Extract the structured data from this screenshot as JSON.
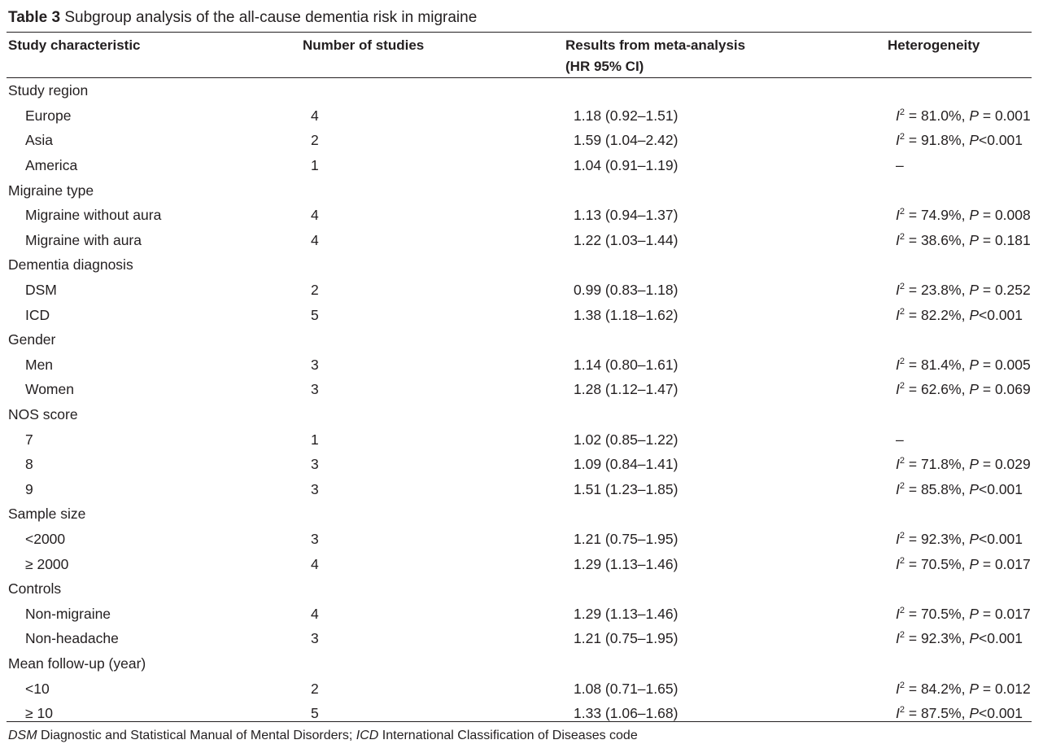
{
  "table": {
    "label": "Table 3",
    "caption": "Subgroup analysis of the all-cause dementia risk in migraine",
    "columns": [
      "Study characteristic",
      "Number of studies",
      "Results from meta-analysis",
      "(HR 95% CI)",
      "Heterogeneity"
    ],
    "groups": [
      {
        "name": "Study region",
        "rows": [
          {
            "label": "Europe",
            "n": "4",
            "hr": "1.18 (0.92–1.51)",
            "i2": "81.0%",
            "p_op": "=",
            "p": "0.001"
          },
          {
            "label": "Asia",
            "n": "2",
            "hr": "1.59 (1.04–2.42)",
            "i2": "91.8%",
            "p_op": "<",
            "p": "0.001"
          },
          {
            "label": "America",
            "n": "1",
            "hr": "1.04 (0.91–1.19)",
            "i2": "",
            "p_op": "",
            "p": "",
            "dash": "–"
          }
        ]
      },
      {
        "name": "Migraine type",
        "rows": [
          {
            "label": "Migraine without aura",
            "n": "4",
            "hr": "1.13 (0.94–1.37)",
            "i2": "74.9%",
            "p_op": "=",
            "p": "0.008"
          },
          {
            "label": "Migraine with aura",
            "n": "4",
            "hr": "1.22 (1.03–1.44)",
            "i2": "38.6%",
            "p_op": "=",
            "p": "0.181"
          }
        ]
      },
      {
        "name": "Dementia diagnosis",
        "rows": [
          {
            "label": "DSM",
            "n": "2",
            "hr": "0.99 (0.83–1.18)",
            "i2": "23.8%",
            "p_op": "=",
            "p": "0.252"
          },
          {
            "label": "ICD",
            "n": "5",
            "hr": "1.38 (1.18–1.62)",
            "i2": "82.2%",
            "p_op": "<",
            "p": "0.001"
          }
        ]
      },
      {
        "name": "Gender",
        "rows": [
          {
            "label": "Men",
            "n": "3",
            "hr": "1.14 (0.80–1.61)",
            "i2": "81.4%",
            "p_op": "=",
            "p": "0.005"
          },
          {
            "label": "Women",
            "n": "3",
            "hr": "1.28 (1.12–1.47)",
            "i2": "62.6%",
            "p_op": "=",
            "p": "0.069"
          }
        ]
      },
      {
        "name": "NOS score",
        "rows": [
          {
            "label": "7",
            "n": "1",
            "hr": "1.02 (0.85–1.22)",
            "i2": "",
            "p_op": "",
            "p": "",
            "dash": "–"
          },
          {
            "label": "8",
            "n": "3",
            "hr": "1.09 (0.84–1.41)",
            "i2": "71.8%",
            "p_op": "=",
            "p": "0.029"
          },
          {
            "label": "9",
            "n": "3",
            "hr": "1.51 (1.23–1.85)",
            "i2": "85.8%",
            "p_op": "<",
            "p": "0.001"
          }
        ]
      },
      {
        "name": "Sample size",
        "rows": [
          {
            "label": "<2000",
            "n": "3",
            "hr": "1.21 (0.75–1.95)",
            "i2": "92.3%",
            "p_op": "<",
            "p": "0.001"
          },
          {
            "label": "≥ 2000",
            "n": "4",
            "hr": "1.29 (1.13–1.46)",
            "i2": "70.5%",
            "p_op": "=",
            "p": "0.017"
          }
        ]
      },
      {
        "name": "Controls",
        "rows": [
          {
            "label": "Non-migraine",
            "n": "4",
            "hr": "1.29 (1.13–1.46)",
            "i2": "70.5%",
            "p_op": "=",
            "p": "0.017"
          },
          {
            "label": "Non-headache",
            "n": "3",
            "hr": "1.21 (0.75–1.95)",
            "i2": "92.3%",
            "p_op": "<",
            "p": "0.001"
          }
        ]
      },
      {
        "name": "Mean follow-up (year)",
        "rows": [
          {
            "label": "<10",
            "n": "2",
            "hr": "1.08 (0.71–1.65)",
            "i2": "84.2%",
            "p_op": "=",
            "p": "0.012"
          },
          {
            "label": "≥ 10",
            "n": "5",
            "hr": "1.33 (1.06–1.68)",
            "i2": "87.5%",
            "p_op": "<",
            "p": "0.001"
          }
        ]
      }
    ]
  },
  "footnote": {
    "abbr1": "DSM",
    "def1": "Diagnostic and Statistical Manual of Mental Disorders;",
    "abbr2": "ICD",
    "def2": "International Classification of Diseases code"
  }
}
